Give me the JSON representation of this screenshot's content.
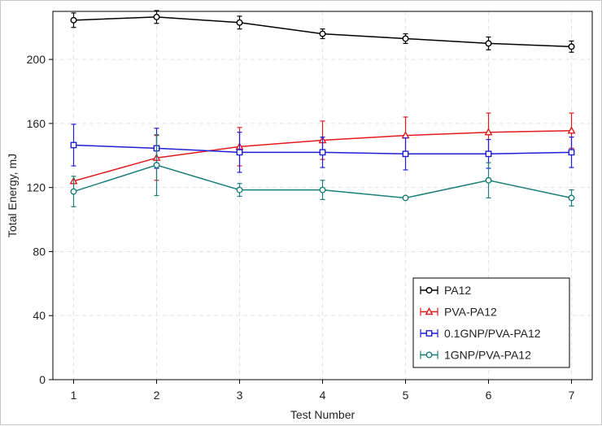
{
  "chart_data": {
    "type": "line",
    "title": "",
    "xlabel": "Test Number",
    "ylabel": "Total Energy, mJ",
    "x": [
      1,
      2,
      3,
      4,
      5,
      6,
      7
    ],
    "x_ticks": [
      "1",
      "2",
      "3",
      "4",
      "5",
      "6",
      "7"
    ],
    "xlim": [
      0.75,
      7.25
    ],
    "ylim": [
      0,
      230
    ],
    "y_ticks": [
      0,
      40,
      80,
      120,
      160,
      200
    ],
    "y_tick_labels": [
      "0",
      "40",
      "80",
      "120",
      "160",
      "200"
    ],
    "grid": true,
    "legend_position": "bottom-right",
    "series": [
      {
        "name": "PA12",
        "color": "#000000",
        "marker": "circle",
        "values": [
          224.5,
          226.5,
          223.0,
          216.0,
          213.0,
          210.0,
          208.0
        ],
        "errors": [
          4.5,
          4.0,
          4.0,
          3.0,
          3.0,
          4.0,
          3.5
        ]
      },
      {
        "name": "PVA-PA12",
        "color": "#e31a1c",
        "marker": "triangle",
        "values": [
          124.0,
          138.5,
          145.5,
          149.5,
          152.5,
          154.5,
          155.5
        ],
        "errors": [
          0,
          14.0,
          12.0,
          12.0,
          11.5,
          12.0,
          11.0
        ]
      },
      {
        "name": "0.1GNP/PVA-PA12",
        "color": "#1f1fd6",
        "marker": "square",
        "values": [
          146.5,
          144.5,
          142.0,
          142.0,
          141.0,
          141.0,
          142.0
        ],
        "errors": [
          13.0,
          12.5,
          12.5,
          9.5,
          10.0,
          9.0,
          9.5
        ]
      },
      {
        "name": "1GNP/PVA-PA12",
        "color": "#1a7f7a",
        "marker": "circle",
        "values": [
          117.5,
          134.0,
          118.5,
          118.5,
          113.5,
          124.5,
          113.5
        ],
        "errors": [
          9.5,
          19.0,
          4.0,
          6.0,
          0,
          11.0,
          5.0
        ]
      }
    ]
  }
}
